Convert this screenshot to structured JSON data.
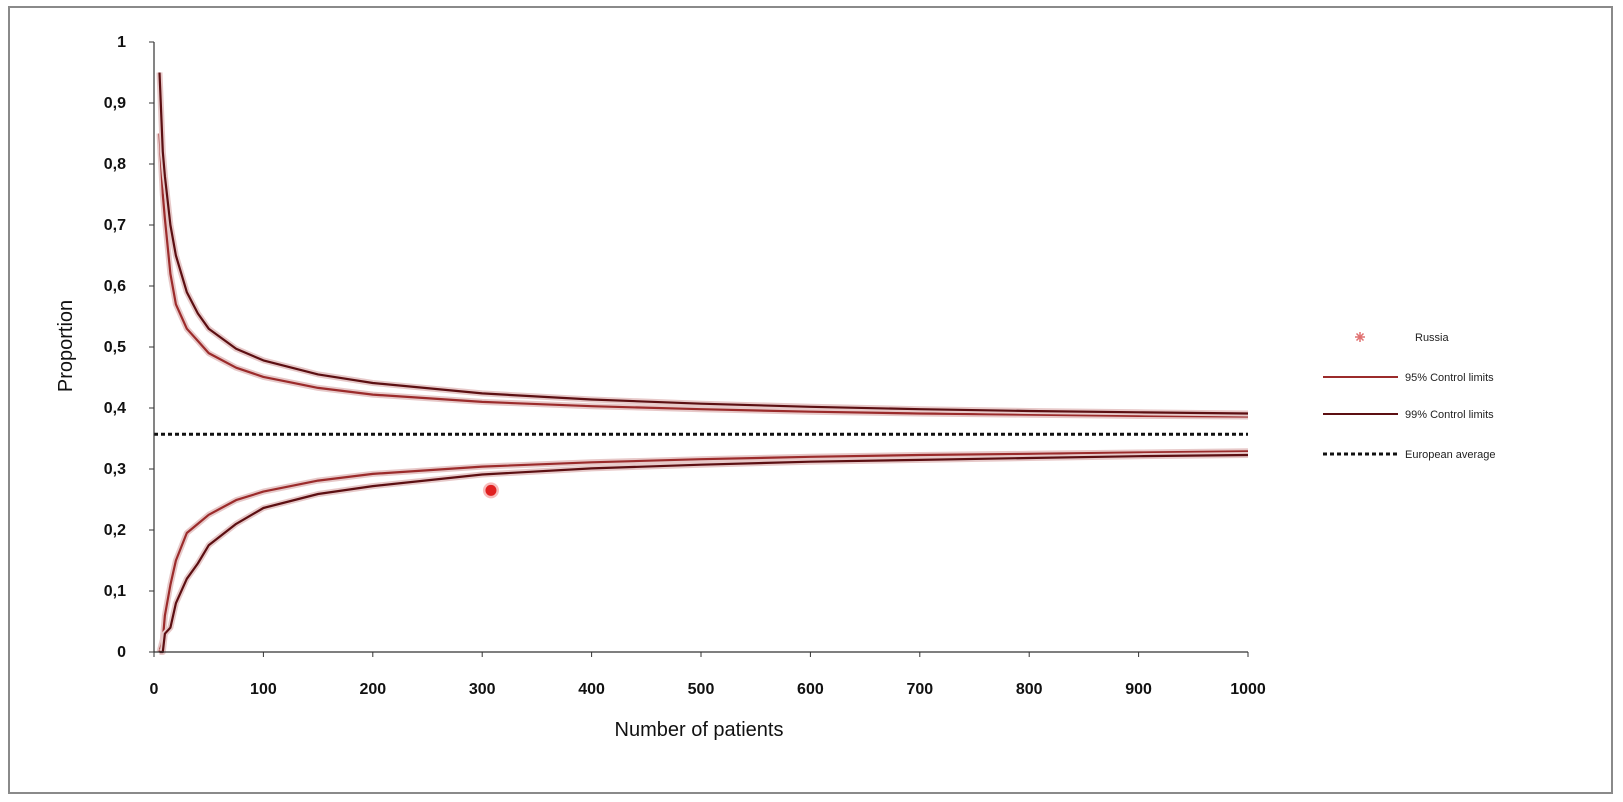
{
  "chart_data": {
    "type": "line",
    "xlabel": "Number of patients",
    "ylabel": "Proportion",
    "xlim": [
      0,
      1000
    ],
    "ylim": [
      0,
      1
    ],
    "x_ticks": [
      "0",
      "100",
      "200",
      "300",
      "400",
      "500",
      "600",
      "700",
      "800",
      "900",
      "1000"
    ],
    "y_ticks": [
      "0",
      "0,1",
      "0,2",
      "0,3",
      "0,4",
      "0,5",
      "0,6",
      "0,7",
      "0,8",
      "0,9",
      "1"
    ],
    "average": 0.357,
    "colors": {
      "inner_limits": "#9b2b2b",
      "outer_limits": "#5c0f12",
      "average": "#111111",
      "point": "#e02020",
      "axis": "#333333"
    },
    "series": [
      {
        "name": "Russia",
        "kind": "point",
        "points": [
          {
            "x": 308,
            "y": 0.265
          }
        ]
      },
      {
        "name": "95% Control limits",
        "kind": "band",
        "x": [
          5,
          8,
          10,
          15,
          20,
          30,
          40,
          50,
          75,
          100,
          150,
          200,
          300,
          400,
          500,
          600,
          700,
          800,
          900,
          1000
        ],
        "upper": [
          0.85,
          0.75,
          0.71,
          0.62,
          0.57,
          0.53,
          0.51,
          0.49,
          0.466,
          0.451,
          0.433,
          0.422,
          0.41,
          0.403,
          0.398,
          0.394,
          0.391,
          0.389,
          0.387,
          0.386
        ],
        "lower": [
          0.0,
          0.02,
          0.06,
          0.11,
          0.15,
          0.195,
          0.21,
          0.225,
          0.249,
          0.263,
          0.281,
          0.292,
          0.304,
          0.311,
          0.316,
          0.32,
          0.323,
          0.325,
          0.327,
          0.329
        ]
      },
      {
        "name": "99% Control limits",
        "kind": "band",
        "x": [
          5,
          8,
          10,
          15,
          20,
          30,
          40,
          50,
          75,
          100,
          150,
          200,
          300,
          400,
          500,
          600,
          700,
          800,
          900,
          1000
        ],
        "upper": [
          0.95,
          0.82,
          0.78,
          0.7,
          0.65,
          0.59,
          0.555,
          0.53,
          0.497,
          0.478,
          0.455,
          0.441,
          0.424,
          0.414,
          0.407,
          0.402,
          0.398,
          0.395,
          0.393,
          0.391
        ],
        "lower": [
          0.0,
          0.0,
          0.03,
          0.04,
          0.08,
          0.12,
          0.145,
          0.175,
          0.21,
          0.236,
          0.259,
          0.272,
          0.291,
          0.301,
          0.307,
          0.312,
          0.315,
          0.318,
          0.321,
          0.323
        ]
      },
      {
        "name": "European average",
        "kind": "dashed",
        "value": 0.357
      }
    ]
  }
}
